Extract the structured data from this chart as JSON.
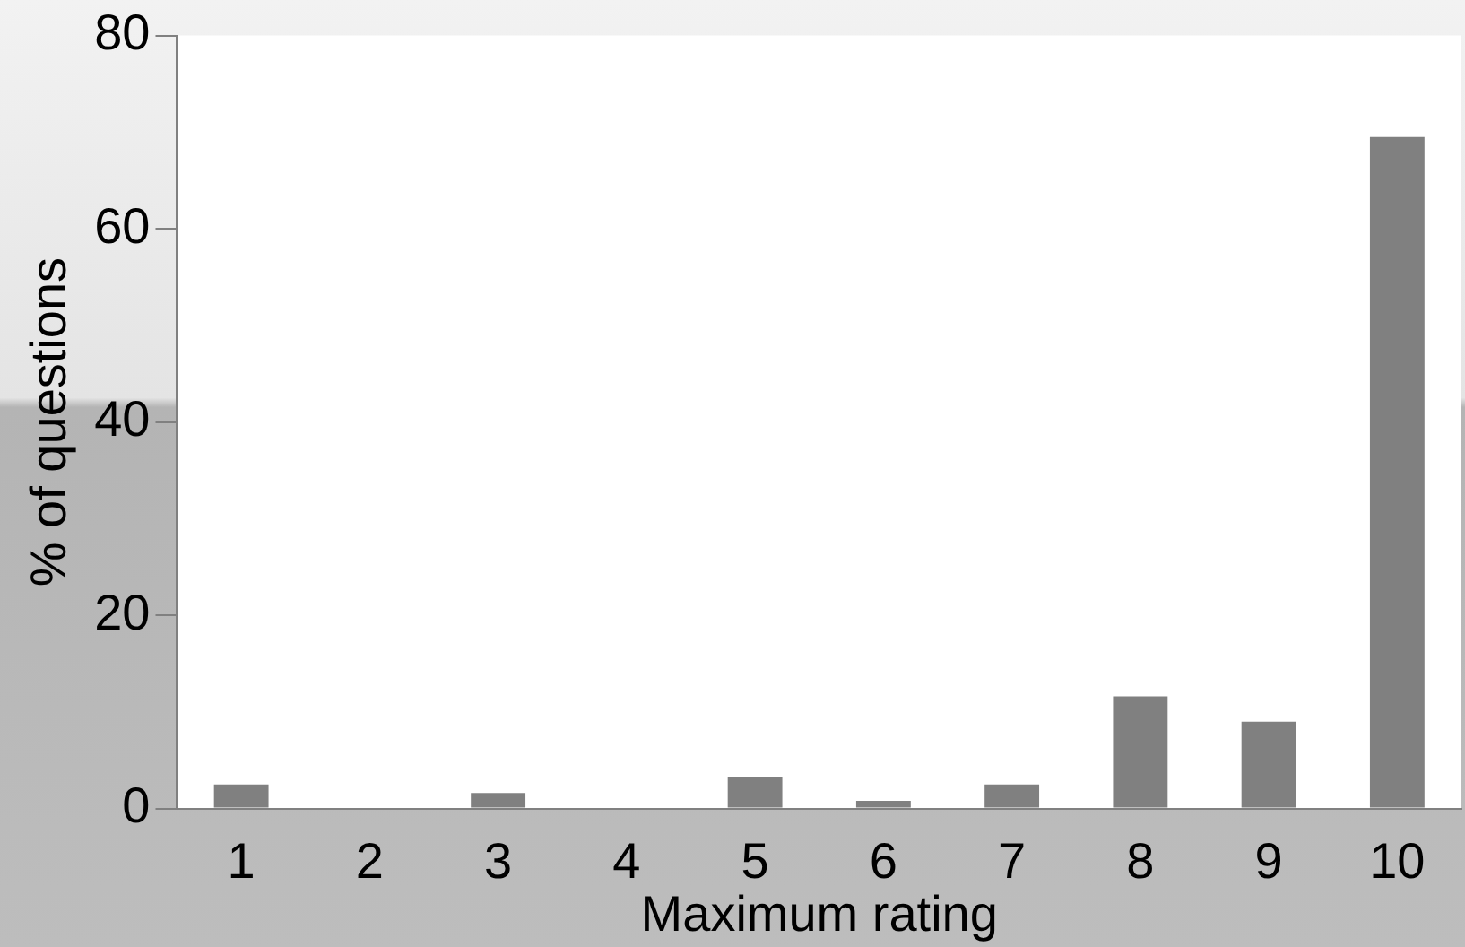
{
  "chart_data": {
    "type": "bar",
    "xlabel": "Maximum rating",
    "ylabel": "% of questions",
    "categories": [
      "1",
      "2",
      "3",
      "4",
      "5",
      "6",
      "7",
      "8",
      "9",
      "10"
    ],
    "values": [
      2.5,
      0,
      1.6,
      0,
      3.3,
      0.8,
      2.5,
      11.6,
      9,
      69.5
    ],
    "color": "#808080",
    "ylim": [
      0,
      80
    ],
    "yticks": [
      0,
      20,
      40,
      60,
      80
    ],
    "grid": false,
    "legend": false
  }
}
